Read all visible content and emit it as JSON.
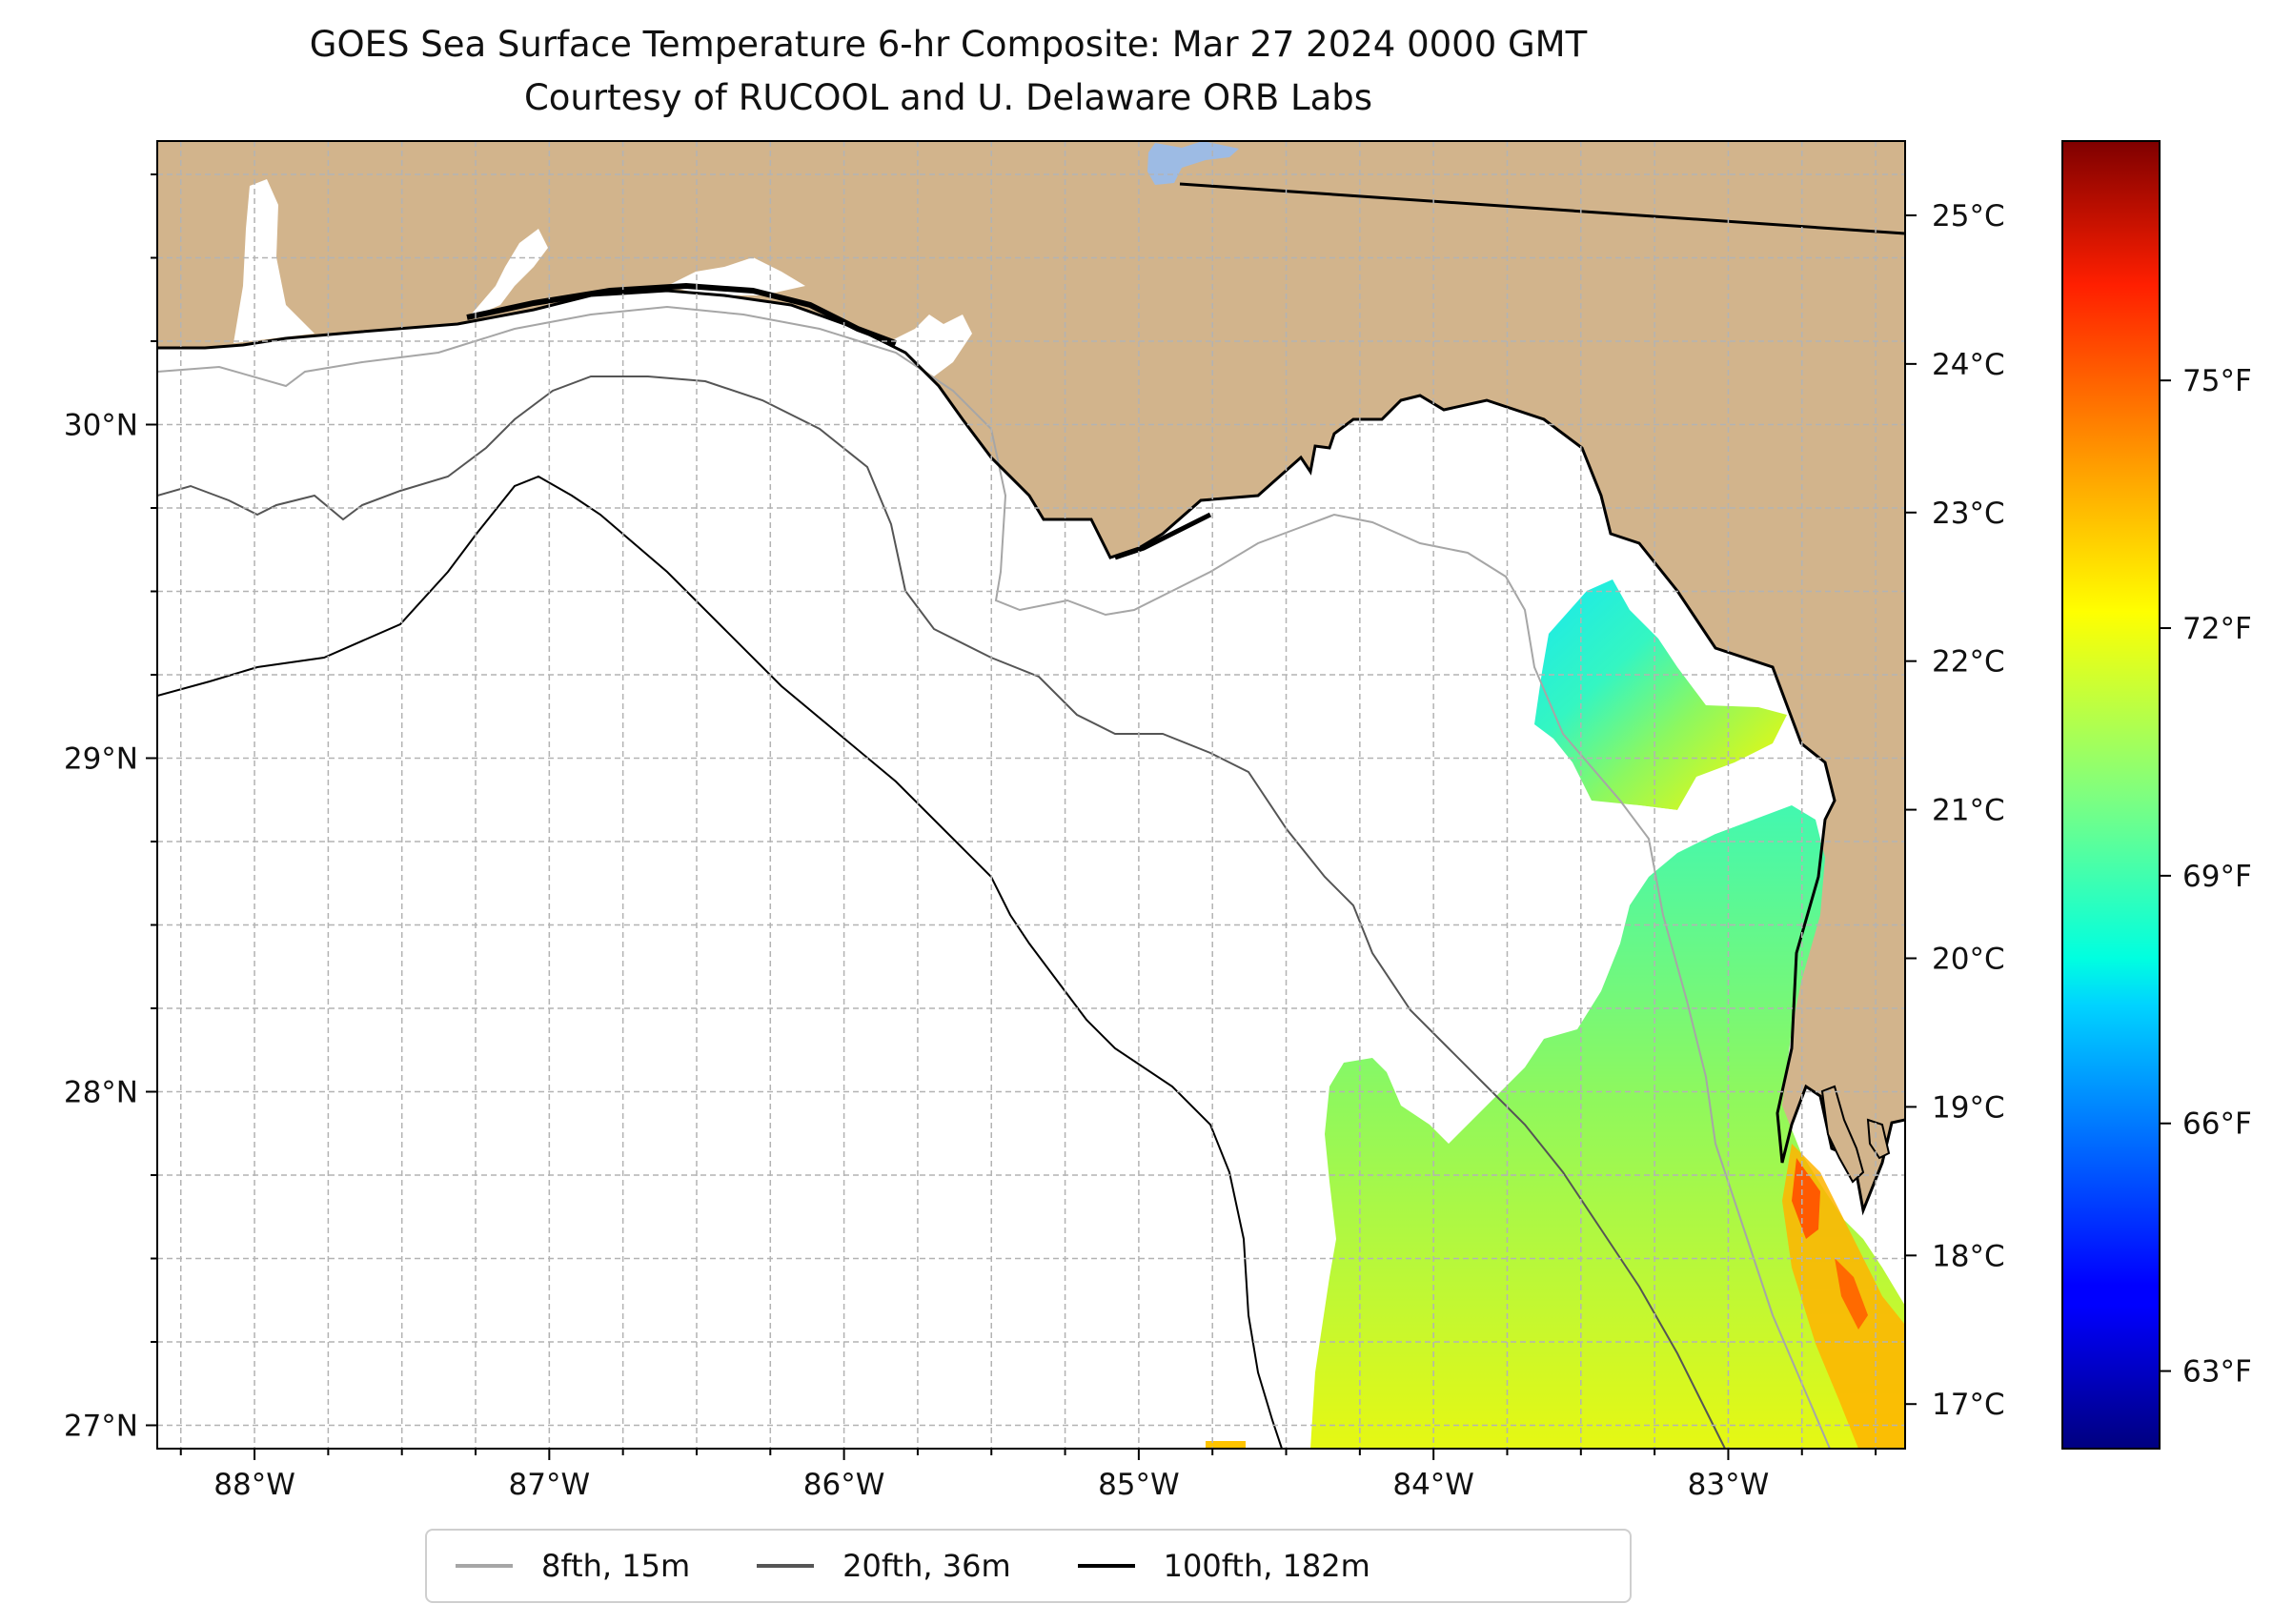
{
  "title": "GOES Sea Surface Temperature 6-hr Composite: Mar 27 2024 0000 GMT",
  "subtitle": "Courtesy of RUCOOL and U. Delaware ORB Labs",
  "map": {
    "lon_range": [
      -88.33,
      -82.4
    ],
    "lat_range": [
      26.93,
      30.85
    ],
    "lon_ticks": [
      {
        "value": -88,
        "label": "88°W"
      },
      {
        "value": -87,
        "label": "87°W"
      },
      {
        "value": -86,
        "label": "86°W"
      },
      {
        "value": -85,
        "label": "85°W"
      },
      {
        "value": -84,
        "label": "84°W"
      },
      {
        "value": -83,
        "label": "83°W"
      }
    ],
    "lat_ticks": [
      {
        "value": 27,
        "label": "27°N"
      },
      {
        "value": 28,
        "label": "28°N"
      },
      {
        "value": 29,
        "label": "29°N"
      },
      {
        "value": 30,
        "label": "30°N"
      }
    ],
    "gridlines": true,
    "land_color": "#d2b48c",
    "water_color": "#ffffff"
  },
  "colorbar": {
    "colormap": "jet",
    "celsius_range": [
      16.7,
      25.5
    ],
    "celsius_ticks": [
      {
        "value": 17,
        "label": "17°C"
      },
      {
        "value": 18,
        "label": "18°C"
      },
      {
        "value": 19,
        "label": "19°C"
      },
      {
        "value": 20,
        "label": "20°C"
      },
      {
        "value": 21,
        "label": "21°C"
      },
      {
        "value": 22,
        "label": "22°C"
      },
      {
        "value": 23,
        "label": "23°C"
      },
      {
        "value": 24,
        "label": "24°C"
      },
      {
        "value": 25,
        "label": "25°C"
      }
    ],
    "fahrenheit_ticks": [
      {
        "value": 63,
        "label": "63°F"
      },
      {
        "value": 66,
        "label": "66°F"
      },
      {
        "value": 69,
        "label": "69°F"
      },
      {
        "value": 72,
        "label": "72°F"
      },
      {
        "value": 75,
        "label": "75°F"
      }
    ]
  },
  "legend": {
    "placement": "bottom-center",
    "items": [
      {
        "label": "8fth, 15m",
        "color": "#a6a6a6"
      },
      {
        "label": "20fth, 36m",
        "color": "#555555"
      },
      {
        "label": "100fth, 182m",
        "color": "#000000"
      }
    ]
  }
}
